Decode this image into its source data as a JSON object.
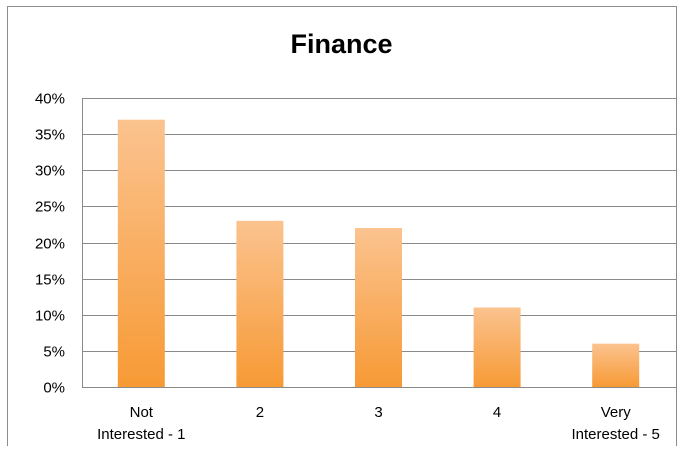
{
  "chart_data": {
    "type": "bar",
    "title": "Finance",
    "xlabel": "",
    "ylabel": "",
    "categories": [
      [
        "Not",
        "Interested - 1"
      ],
      [
        "2"
      ],
      [
        "3"
      ],
      [
        "4"
      ],
      [
        "Very",
        "Interested - 5"
      ]
    ],
    "values": [
      0.37,
      0.23,
      0.22,
      0.11,
      0.06
    ],
    "ylim": [
      0,
      0.4
    ],
    "yticks": [
      {
        "value": 0.0,
        "label": "0%"
      },
      {
        "value": 0.05,
        "label": "5%"
      },
      {
        "value": 0.1,
        "label": "10%"
      },
      {
        "value": 0.15,
        "label": "15%"
      },
      {
        "value": 0.2,
        "label": "20%"
      },
      {
        "value": 0.25,
        "label": "25%"
      },
      {
        "value": 0.3,
        "label": "30%"
      },
      {
        "value": 0.35,
        "label": "35%"
      },
      {
        "value": 0.4,
        "label": "40%"
      }
    ],
    "grid": true,
    "colors": {
      "bar_top": "#fbc38f",
      "bar_bottom": "#f79a35",
      "grid": "#8a8a8a",
      "axis": "#8a8a8a"
    }
  }
}
